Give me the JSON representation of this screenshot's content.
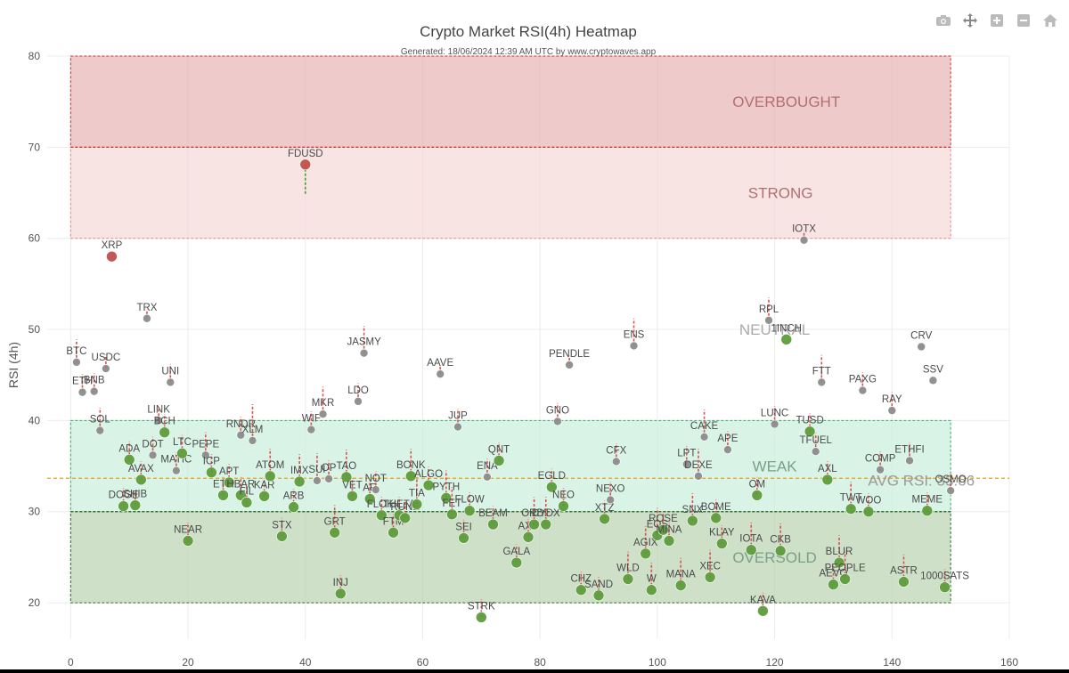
{
  "chart_data": {
    "type": "scatter",
    "title": "Crypto Market RSI(4h) Heatmap",
    "subtitle": "Generated: 18/06/2024 12:39 AM UTC by www.cryptowaves.app",
    "xlabel": "",
    "ylabel": "RSI (4h)",
    "xlim": [
      -4,
      160
    ],
    "ylim": [
      16,
      80
    ],
    "x_ticks": [
      0,
      20,
      40,
      60,
      80,
      100,
      120,
      140,
      160
    ],
    "y_ticks": [
      20,
      30,
      40,
      50,
      60,
      70,
      80
    ],
    "grid": true,
    "zones": [
      {
        "label": "OVERBOUGHT",
        "from": 70,
        "to": 80,
        "fill": "#e8b4b4",
        "border": "#cc3333"
      },
      {
        "label": "STRONG",
        "from": 60,
        "to": 70,
        "fill": "#f7d9d9",
        "border": "#e28a8a"
      },
      {
        "label": "NEUTRAL",
        "from": 40,
        "to": 60,
        "fill": "none",
        "border": "none"
      },
      {
        "label": "WEAK",
        "from": 30,
        "to": 40,
        "fill": "#c9efdc",
        "border": "#33aa66"
      },
      {
        "label": "OVERSOLD",
        "from": 20,
        "to": 30,
        "fill": "#b9d3b1",
        "border": "#2e6b2e"
      }
    ],
    "avg_rsi": {
      "label": "AVG RSI: 33.66",
      "value": 33.66,
      "color": "#e8a020"
    },
    "colors": {
      "red": "#c0504d",
      "gray": "#8c8c8c",
      "green": "#5e9c3c",
      "arrow_red": "#d9534f",
      "arrow_green": "#4a9a3a"
    },
    "points": [
      {
        "name": "BTC",
        "x": 1,
        "y": 46.4,
        "c": "gray",
        "tail": 2.5
      },
      {
        "name": "ETH",
        "x": 2,
        "y": 43.1,
        "c": "gray",
        "tail": 2
      },
      {
        "name": "BNB",
        "x": 4,
        "y": 43.2,
        "c": "gray",
        "tail": 2
      },
      {
        "name": "SOL",
        "x": 5,
        "y": 38.9,
        "c": "gray",
        "tail": 2.5
      },
      {
        "name": "USDC",
        "x": 6,
        "y": 45.7,
        "c": "gray",
        "tail": 1.5
      },
      {
        "name": "XRP",
        "x": 7,
        "y": 58,
        "c": "red",
        "tail": 0
      },
      {
        "name": "DOGE",
        "x": 9,
        "y": 30.6,
        "c": "green",
        "tail": 2
      },
      {
        "name": "ADA",
        "x": 10,
        "y": 35.7,
        "c": "green",
        "tail": 2
      },
      {
        "name": "SHIB",
        "x": 11,
        "y": 30.7,
        "c": "green",
        "tail": 1.5
      },
      {
        "name": "AVAX",
        "x": 12,
        "y": 33.5,
        "c": "green",
        "tail": 2
      },
      {
        "name": "TRX",
        "x": 13,
        "y": 51.2,
        "c": "gray",
        "tail": 1
      },
      {
        "name": "DOT",
        "x": 14,
        "y": 36.2,
        "c": "gray",
        "tail": 2
      },
      {
        "name": "LINK",
        "x": 15,
        "y": 40,
        "c": "gray",
        "tail": 1.5
      },
      {
        "name": "BCH",
        "x": 16,
        "y": 38.7,
        "c": "green",
        "tail": 2
      },
      {
        "name": "UNI",
        "x": 17,
        "y": 44.2,
        "c": "gray",
        "tail": 2
      },
      {
        "name": "MATIC",
        "x": 18,
        "y": 34.5,
        "c": "gray",
        "tail": 2
      },
      {
        "name": "LTC",
        "x": 19,
        "y": 36.4,
        "c": "green",
        "tail": 2
      },
      {
        "name": "NEAR",
        "x": 20,
        "y": 26.8,
        "c": "green",
        "tail": 2
      },
      {
        "name": "PEPE",
        "x": 23,
        "y": 36.2,
        "c": "gray",
        "tail": 2.5
      },
      {
        "name": "ICP",
        "x": 24,
        "y": 34.3,
        "c": "green",
        "tail": 2
      },
      {
        "name": "ETC",
        "x": 26,
        "y": 31.8,
        "c": "green",
        "tail": 2
      },
      {
        "name": "APT",
        "x": 27,
        "y": 33.2,
        "c": "green",
        "tail": 2
      },
      {
        "name": "HBAR",
        "x": 29,
        "y": 31.8,
        "c": "green",
        "tail": 2
      },
      {
        "name": "RNDR",
        "x": 29,
        "y": 38.4,
        "c": "gray",
        "tail": 2
      },
      {
        "name": "FIL",
        "x": 30,
        "y": 31,
        "c": "green",
        "tail": 2
      },
      {
        "name": "XLM",
        "x": 31,
        "y": 37.8,
        "c": "gray",
        "tail": 4
      },
      {
        "name": "KAR",
        "x": 33,
        "y": 31.7,
        "c": "green",
        "tail": 2
      },
      {
        "name": "ATOM",
        "x": 34,
        "y": 33.9,
        "c": "green",
        "tail": 3
      },
      {
        "name": "STX",
        "x": 36,
        "y": 27.3,
        "c": "green",
        "tail": 2
      },
      {
        "name": "ARB",
        "x": 38,
        "y": 30.5,
        "c": "green",
        "tail": 2
      },
      {
        "name": "IMX",
        "x": 39,
        "y": 33.3,
        "c": "green",
        "tail": 3
      },
      {
        "name": "WIF",
        "x": 41,
        "y": 39,
        "c": "gray",
        "tail": 2
      },
      {
        "name": "SUI",
        "x": 42,
        "y": 33.4,
        "c": "gray",
        "tail": 3
      },
      {
        "name": "MKR",
        "x": 43,
        "y": 40.7,
        "c": "gray",
        "tail": 3
      },
      {
        "name": "OP",
        "x": 44,
        "y": 33.6,
        "c": "gray",
        "tail": 2
      },
      {
        "name": "GRT",
        "x": 45,
        "y": 27.7,
        "c": "green",
        "tail": 3
      },
      {
        "name": "INJ",
        "x": 46,
        "y": 21,
        "c": "green",
        "tail": 2
      },
      {
        "name": "TAO",
        "x": 47,
        "y": 33.8,
        "c": "green",
        "tail": 3
      },
      {
        "name": "VET",
        "x": 48,
        "y": 31.7,
        "c": "green",
        "tail": 2
      },
      {
        "name": "LDO",
        "x": 49,
        "y": 42.1,
        "c": "gray",
        "tail": 2
      },
      {
        "name": "JASMY",
        "x": 50,
        "y": 47.4,
        "c": "gray",
        "tail": 3
      },
      {
        "name": "AR",
        "x": 51,
        "y": 31.4,
        "c": "green",
        "tail": 2
      },
      {
        "name": "NOT",
        "x": 52,
        "y": 32.4,
        "c": "gray",
        "tail": 2
      },
      {
        "name": "FLOKI",
        "x": 53,
        "y": 29.6,
        "c": "green",
        "tail": 2
      },
      {
        "name": "FTM",
        "x": 55,
        "y": 27.7,
        "c": "green",
        "tail": 2
      },
      {
        "name": "THETA",
        "x": 56,
        "y": 29.6,
        "c": "green",
        "tail": 2
      },
      {
        "name": "BONK",
        "x": 58,
        "y": 33.9,
        "c": "green",
        "tail": 3
      },
      {
        "name": "RUNE",
        "x": 57,
        "y": 29.3,
        "c": "green",
        "tail": 2
      },
      {
        "name": "TIA",
        "x": 59,
        "y": 30.8,
        "c": "green",
        "tail": 3
      },
      {
        "name": "ALGO",
        "x": 61,
        "y": 32.9,
        "c": "green",
        "tail": 2
      },
      {
        "name": "AAVE",
        "x": 63,
        "y": 45.1,
        "c": "gray",
        "tail": 1
      },
      {
        "name": "PYTH",
        "x": 64,
        "y": 31.5,
        "c": "green",
        "tail": 3
      },
      {
        "name": "JUP",
        "x": 66,
        "y": 39.3,
        "c": "gray",
        "tail": 2
      },
      {
        "name": "SEI",
        "x": 67,
        "y": 27.1,
        "c": "green",
        "tail": 2
      },
      {
        "name": "FET",
        "x": 65,
        "y": 29.7,
        "c": "green",
        "tail": 3
      },
      {
        "name": "FLOW",
        "x": 68,
        "y": 30.1,
        "c": "green",
        "tail": 2
      },
      {
        "name": "STRK",
        "x": 70,
        "y": 18.4,
        "c": "green",
        "tail": 2
      },
      {
        "name": "ENA",
        "x": 71,
        "y": 33.8,
        "c": "gray",
        "tail": 2
      },
      {
        "name": "QNT",
        "x": 73,
        "y": 35.6,
        "c": "green",
        "tail": 2
      },
      {
        "name": "BEAM",
        "x": 72,
        "y": 28.6,
        "c": "green",
        "tail": 2
      },
      {
        "name": "GALA",
        "x": 76,
        "y": 24.4,
        "c": "green",
        "tail": 2
      },
      {
        "name": "AXS",
        "x": 78,
        "y": 27.2,
        "c": "green",
        "tail": 2
      },
      {
        "name": "ORDI",
        "x": 79,
        "y": 28.6,
        "c": "green",
        "tail": 3
      },
      {
        "name": "DYDX",
        "x": 81,
        "y": 28.6,
        "c": "green",
        "tail": 3
      },
      {
        "name": "EGLD",
        "x": 82,
        "y": 32.7,
        "c": "green",
        "tail": 2
      },
      {
        "name": "GNO",
        "x": 83,
        "y": 39.9,
        "c": "gray",
        "tail": 2
      },
      {
        "name": "NEO",
        "x": 84,
        "y": 30.6,
        "c": "green",
        "tail": 2
      },
      {
        "name": "PENDLE",
        "x": 85,
        "y": 46.1,
        "c": "gray",
        "tail": 1
      },
      {
        "name": "CHZ",
        "x": 87,
        "y": 21.4,
        "c": "green",
        "tail": 2
      },
      {
        "name": "SAND",
        "x": 90,
        "y": 20.8,
        "c": "green",
        "tail": 2
      },
      {
        "name": "XTZ",
        "x": 91,
        "y": 29.2,
        "c": "green",
        "tail": 2
      },
      {
        "name": "NEXO",
        "x": 92,
        "y": 31.3,
        "c": "gray",
        "tail": 2
      },
      {
        "name": "CFX",
        "x": 93,
        "y": 35.5,
        "c": "gray",
        "tail": 2
      },
      {
        "name": "WLD",
        "x": 95,
        "y": 22.6,
        "c": "green",
        "tail": 3
      },
      {
        "name": "ENS",
        "x": 96,
        "y": 48.2,
        "c": "gray",
        "tail": 3
      },
      {
        "name": "AGIX",
        "x": 98,
        "y": 25.4,
        "c": "green",
        "tail": 3
      },
      {
        "name": "W",
        "x": 99,
        "y": 21.4,
        "c": "green",
        "tail": 3
      },
      {
        "name": "EOS",
        "x": 100,
        "y": 27.4,
        "c": "green",
        "tail": 3
      },
      {
        "name": "ROSE",
        "x": 101,
        "y": 28,
        "c": "green",
        "tail": 2
      },
      {
        "name": "MINA",
        "x": 102,
        "y": 26.8,
        "c": "green",
        "tail": 2
      },
      {
        "name": "MANA",
        "x": 104,
        "y": 21.9,
        "c": "green",
        "tail": 3
      },
      {
        "name": "LPT",
        "x": 105,
        "y": 35.2,
        "c": "gray",
        "tail": 2
      },
      {
        "name": "SNX",
        "x": 106,
        "y": 29,
        "c": "green",
        "tail": 3
      },
      {
        "name": "DEXE",
        "x": 107,
        "y": 33.9,
        "c": "gray",
        "tail": 3
      },
      {
        "name": "CAKE",
        "x": 108,
        "y": 38.2,
        "c": "gray",
        "tail": 3
      },
      {
        "name": "XEC",
        "x": 109,
        "y": 22.8,
        "c": "green",
        "tail": 3
      },
      {
        "name": "BOME",
        "x": 110,
        "y": 29.3,
        "c": "green",
        "tail": 2
      },
      {
        "name": "KLAY",
        "x": 111,
        "y": 26.5,
        "c": "green",
        "tail": 2
      },
      {
        "name": "APE",
        "x": 112,
        "y": 36.8,
        "c": "gray",
        "tail": 2
      },
      {
        "name": "OM",
        "x": 117,
        "y": 31.8,
        "c": "green",
        "tail": 2
      },
      {
        "name": "IOTA",
        "x": 116,
        "y": 25.8,
        "c": "green",
        "tail": 3
      },
      {
        "name": "KAVA",
        "x": 118,
        "y": 19.1,
        "c": "green",
        "tail": 2
      },
      {
        "name": "RPL",
        "x": 119,
        "y": 51,
        "c": "gray",
        "tail": 2.5
      },
      {
        "name": "LUNC",
        "x": 120,
        "y": 39.6,
        "c": "gray",
        "tail": 2
      },
      {
        "name": "CKB",
        "x": 121,
        "y": 25.7,
        "c": "green",
        "tail": 3
      },
      {
        "name": "1INCH",
        "x": 122,
        "y": 48.9,
        "c": "green",
        "tail": 0
      },
      {
        "name": "IOTX",
        "x": 125,
        "y": 59.8,
        "c": "gray",
        "tail": 1
      },
      {
        "name": "TUSD",
        "x": 126,
        "y": 38.8,
        "c": "green",
        "tail": 2
      },
      {
        "name": "TFUEL",
        "x": 127,
        "y": 36.6,
        "c": "gray",
        "tail": 2
      },
      {
        "name": "FTT",
        "x": 128,
        "y": 44.2,
        "c": "gray",
        "tail": 3
      },
      {
        "name": "AXL",
        "x": 129,
        "y": 33.5,
        "c": "green",
        "tail": 2
      },
      {
        "name": "AEVO",
        "x": 130,
        "y": 22,
        "c": "green",
        "tail": 2
      },
      {
        "name": "BLUR",
        "x": 131,
        "y": 24.4,
        "c": "green",
        "tail": 3
      },
      {
        "name": "PEOPLE",
        "x": 132,
        "y": 22.6,
        "c": "green",
        "tail": 3
      },
      {
        "name": "TWT",
        "x": 133,
        "y": 30.3,
        "c": "green",
        "tail": 3
      },
      {
        "name": "PAXG",
        "x": 135,
        "y": 43.3,
        "c": "gray",
        "tail": 2
      },
      {
        "name": "WOO",
        "x": 136,
        "y": 30,
        "c": "green",
        "tail": 2
      },
      {
        "name": "COMP",
        "x": 138,
        "y": 34.6,
        "c": "gray",
        "tail": 2
      },
      {
        "name": "RAY",
        "x": 140,
        "y": 41.1,
        "c": "gray",
        "tail": 2
      },
      {
        "name": "ASTR",
        "x": 142,
        "y": 22.3,
        "c": "green",
        "tail": 3
      },
      {
        "name": "ETHFI",
        "x": 143,
        "y": 35.6,
        "c": "gray",
        "tail": 2
      },
      {
        "name": "MEME",
        "x": 146,
        "y": 30.1,
        "c": "green",
        "tail": 2
      },
      {
        "name": "CRV",
        "x": 145,
        "y": 48.1,
        "c": "gray",
        "tail": 0
      },
      {
        "name": "SSV",
        "x": 147,
        "y": 44.4,
        "c": "gray",
        "tail": 0
      },
      {
        "name": "1000SATS",
        "x": 149,
        "y": 21.7,
        "c": "green",
        "tail": 2
      },
      {
        "name": "OSMO",
        "x": 150,
        "y": 32.3,
        "c": "gray",
        "tail": 2
      },
      {
        "name": "FDUSD",
        "x": 40,
        "y": 68.1,
        "c": "red",
        "tail": -3.3
      }
    ]
  },
  "toolbar": [
    {
      "name": "camera-icon",
      "title": "Download plot as png"
    },
    {
      "name": "pan-icon",
      "title": "Pan"
    },
    {
      "name": "zoom-in-icon",
      "title": "Zoom in"
    },
    {
      "name": "zoom-out-icon",
      "title": "Zoom out"
    },
    {
      "name": "home-icon",
      "title": "Reset axes"
    }
  ]
}
